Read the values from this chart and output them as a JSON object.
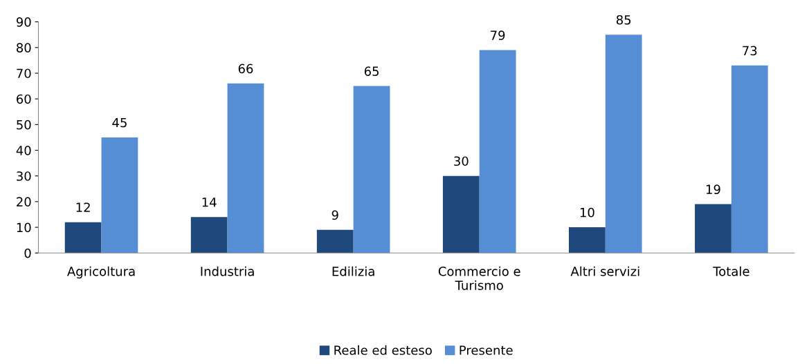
{
  "chart_data": {
    "type": "bar",
    "categories": [
      "Agricoltura",
      "Industria",
      "Edilizia",
      "Commercio e\nTurismo",
      "Altri servizi",
      "Totale"
    ],
    "series": [
      {
        "name": "Reale ed esteso",
        "color": "#1f497d",
        "values": [
          12,
          14,
          9,
          30,
          10,
          19
        ]
      },
      {
        "name": "Presente",
        "color": "#558ed5",
        "values": [
          45,
          66,
          65,
          79,
          85,
          73
        ]
      }
    ],
    "ylim": [
      0,
      90
    ],
    "yticks": [
      0,
      10,
      20,
      30,
      40,
      50,
      60,
      70,
      80,
      90
    ],
    "grid": false,
    "legend": "bottom",
    "data_labels": true
  }
}
